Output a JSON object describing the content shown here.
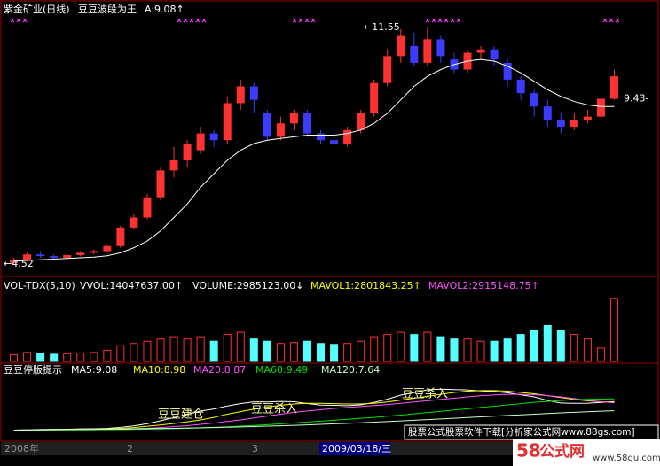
{
  "chart_data": [
    {
      "type": "candlestick",
      "title": "紫金矿业(日线)",
      "subtitle": "豆豆波段为王",
      "header_value": "A:9.08↑",
      "up_color": "#ff3232",
      "down_color": "#3c3cff",
      "line_color": "#ffffff",
      "ylim": [
        4.2,
        12.0
      ],
      "open": [
        4.55,
        4.65,
        4.8,
        4.75,
        4.7,
        4.78,
        4.85,
        4.9,
        5.05,
        5.6,
        5.9,
        6.5,
        7.3,
        7.6,
        7.9,
        8.4,
        8.2,
        9.3,
        9.8,
        9.0,
        8.3,
        8.7,
        9.0,
        8.4,
        8.2,
        8.1,
        8.5,
        9.0,
        9.9,
        10.7,
        11.0,
        10.5,
        11.2,
        10.6,
        10.3,
        10.8,
        10.9,
        10.5,
        10.0,
        9.6,
        9.2,
        8.8,
        8.6,
        8.8,
        8.9,
        9.43
      ],
      "close": [
        4.65,
        4.8,
        4.75,
        4.7,
        4.78,
        4.85,
        4.9,
        5.05,
        5.6,
        5.9,
        6.5,
        7.3,
        7.6,
        8.1,
        8.4,
        8.2,
        9.3,
        9.8,
        9.4,
        8.3,
        8.7,
        9.0,
        8.4,
        8.2,
        8.1,
        8.5,
        9.0,
        9.9,
        10.7,
        11.3,
        10.5,
        11.2,
        10.7,
        10.3,
        10.8,
        10.9,
        10.6,
        10.0,
        9.6,
        9.2,
        8.8,
        8.6,
        8.8,
        8.9,
        9.43,
        10.1
      ],
      "high": [
        4.7,
        4.85,
        4.9,
        4.8,
        4.82,
        4.9,
        4.95,
        5.1,
        5.65,
        6.0,
        6.6,
        7.4,
        8.0,
        8.2,
        8.6,
        8.5,
        9.5,
        10.0,
        9.9,
        9.1,
        8.9,
        9.1,
        9.1,
        8.5,
        8.3,
        8.6,
        9.1,
        10.0,
        10.9,
        11.5,
        11.4,
        11.55,
        11.3,
        10.8,
        10.9,
        11.0,
        11.0,
        10.6,
        10.1,
        9.7,
        9.4,
        9.0,
        9.0,
        9.1,
        9.5,
        10.3
      ],
      "low": [
        4.52,
        4.6,
        4.7,
        4.62,
        4.66,
        4.74,
        4.8,
        4.85,
        5.0,
        5.55,
        5.85,
        6.4,
        7.1,
        7.4,
        7.8,
        8.0,
        8.1,
        9.1,
        9.0,
        8.2,
        8.2,
        8.5,
        8.3,
        8.1,
        8.0,
        8.0,
        8.4,
        8.9,
        9.8,
        10.5,
        10.4,
        10.4,
        10.5,
        10.2,
        10.2,
        10.6,
        10.4,
        9.8,
        9.4,
        8.9,
        8.6,
        8.4,
        8.5,
        8.7,
        8.8,
        9.4
      ],
      "line_values": [
        4.6,
        4.62,
        4.64,
        4.66,
        4.68,
        4.7,
        4.72,
        4.76,
        4.85,
        5.0,
        5.2,
        5.5,
        5.9,
        6.3,
        6.8,
        7.2,
        7.6,
        7.9,
        8.1,
        8.2,
        8.25,
        8.3,
        8.35,
        8.35,
        8.35,
        8.4,
        8.5,
        8.7,
        9.0,
        9.4,
        9.8,
        10.1,
        10.3,
        10.45,
        10.55,
        10.6,
        10.55,
        10.4,
        10.2,
        9.95,
        9.7,
        9.5,
        9.35,
        9.25,
        9.2,
        9.2
      ],
      "price_labels": [
        {
          "value": 4.52,
          "label": "←4.52"
        },
        {
          "value": 11.55,
          "label": "←11.55"
        },
        {
          "value": 9.43,
          "label": "9.43-"
        }
      ]
    },
    {
      "type": "bar",
      "title": "VOL-TDX(5,10)",
      "texts": [
        "VVOL:14047637.00↑",
        "VOLUME:2985123.00↓",
        "MAVOL1:2801843.25↑",
        "MAVOL2:2915148.75↑"
      ],
      "up_color": "#ff3232",
      "down_color": "#54ffff",
      "ylim": [
        0,
        15000000
      ],
      "values": [
        1500000,
        2000000,
        1800000,
        1600000,
        1700000,
        1900000,
        2000000,
        2500000,
        3500000,
        4000000,
        4500000,
        5000000,
        5500000,
        5000000,
        5500000,
        4500000,
        6000000,
        6500000,
        5000000,
        4500000,
        4000000,
        4200000,
        4500000,
        4000000,
        3800000,
        4000000,
        4500000,
        5500000,
        6000000,
        6500000,
        6000000,
        6500000,
        5500000,
        5000000,
        5000000,
        4500000,
        4500000,
        5000000,
        6000000,
        7000000,
        8000000,
        7000000,
        6000000,
        5000000,
        2985123,
        14047637
      ]
    },
    {
      "type": "line",
      "title": "豆豆停版提示",
      "ylim": [
        3,
        13
      ],
      "annotations": [
        "豆豆建仓",
        "豆豆杀入",
        "豆豆杀入"
      ],
      "series": [
        {
          "name": "MA5:9.08",
          "color": "#ffffff",
          "values": [
            4.6,
            4.65,
            4.7,
            4.72,
            4.74,
            4.78,
            4.8,
            4.86,
            5.04,
            5.26,
            5.6,
            6.06,
            6.58,
            7.08,
            7.58,
            7.92,
            8.38,
            8.76,
            9.02,
            9.0,
            9.1,
            9.04,
            8.76,
            8.52,
            8.48,
            8.44,
            8.56,
            8.94,
            9.44,
            10.08,
            10.48,
            10.92,
            11.02,
            10.96,
            10.9,
            10.74,
            10.66,
            10.44,
            10.14,
            9.8,
            9.24,
            8.84,
            8.8,
            8.82,
            8.94,
            9.08
          ]
        },
        {
          "name": "MA10:8.98",
          "color": "#ffff00",
          "values": [
            4.6,
            4.62,
            4.65,
            4.68,
            4.7,
            4.72,
            4.74,
            4.78,
            4.88,
            5.0,
            5.2,
            5.4,
            5.64,
            5.9,
            6.2,
            6.6,
            7.1,
            7.5,
            7.9,
            8.2,
            8.5,
            8.7,
            8.8,
            8.8,
            8.75,
            8.7,
            8.7,
            8.8,
            9.0,
            9.3,
            9.6,
            9.9,
            10.2,
            10.5,
            10.7,
            10.8,
            10.8,
            10.7,
            10.5,
            10.3,
            10.0,
            9.7,
            9.4,
            9.2,
            9.05,
            8.98
          ]
        },
        {
          "name": "MA20:8.87",
          "color": "#ff54ff",
          "values": [
            4.6,
            4.61,
            4.62,
            4.64,
            4.66,
            4.68,
            4.7,
            4.72,
            4.76,
            4.82,
            4.9,
            5.0,
            5.15,
            5.3,
            5.5,
            5.7,
            5.95,
            6.2,
            6.5,
            6.8,
            7.1,
            7.4,
            7.6,
            7.8,
            8.0,
            8.15,
            8.3,
            8.45,
            8.6,
            8.8,
            9.0,
            9.2,
            9.4,
            9.6,
            9.8,
            10.0,
            10.1,
            10.2,
            10.2,
            10.15,
            10.0,
            9.8,
            9.55,
            9.3,
            9.05,
            8.87
          ]
        },
        {
          "name": "MA60:9.49",
          "color": "#00e000",
          "values": [
            4.6,
            4.6,
            4.61,
            4.62,
            4.63,
            4.64,
            4.65,
            4.66,
            4.68,
            4.7,
            4.73,
            4.77,
            4.82,
            4.88,
            4.95,
            5.03,
            5.12,
            5.22,
            5.33,
            5.45,
            5.58,
            5.72,
            5.86,
            6.0,
            6.15,
            6.3,
            6.45,
            6.6,
            6.78,
            6.96,
            7.15,
            7.35,
            7.55,
            7.75,
            7.95,
            8.15,
            8.35,
            8.55,
            8.75,
            8.95,
            9.1,
            9.25,
            9.35,
            9.42,
            9.46,
            9.49
          ]
        },
        {
          "name": "MA120:7.64",
          "color": "#c8ffc8",
          "values": [
            4.6,
            4.62,
            4.64,
            4.66,
            4.68,
            4.7,
            4.72,
            4.74,
            4.76,
            4.79,
            4.82,
            4.85,
            4.88,
            4.92,
            4.96,
            5.0,
            5.05,
            5.1,
            5.16,
            5.22,
            5.28,
            5.35,
            5.42,
            5.5,
            5.58,
            5.66,
            5.75,
            5.84,
            5.94,
            6.04,
            6.14,
            6.24,
            6.35,
            6.46,
            6.57,
            6.68,
            6.79,
            6.9,
            7.0,
            7.1,
            7.2,
            7.3,
            7.4,
            7.48,
            7.56,
            7.64
          ]
        }
      ]
    }
  ],
  "axis_labels": [
    "2008年",
    "2",
    "3"
  ],
  "cursor_date": "2009/03/18/三",
  "watermark": "股票公式股票软件下载[分析家公式网www.88gs.com]",
  "logo": {
    "number": "58",
    "name": "公式网",
    "url": "www.58gu.com"
  }
}
